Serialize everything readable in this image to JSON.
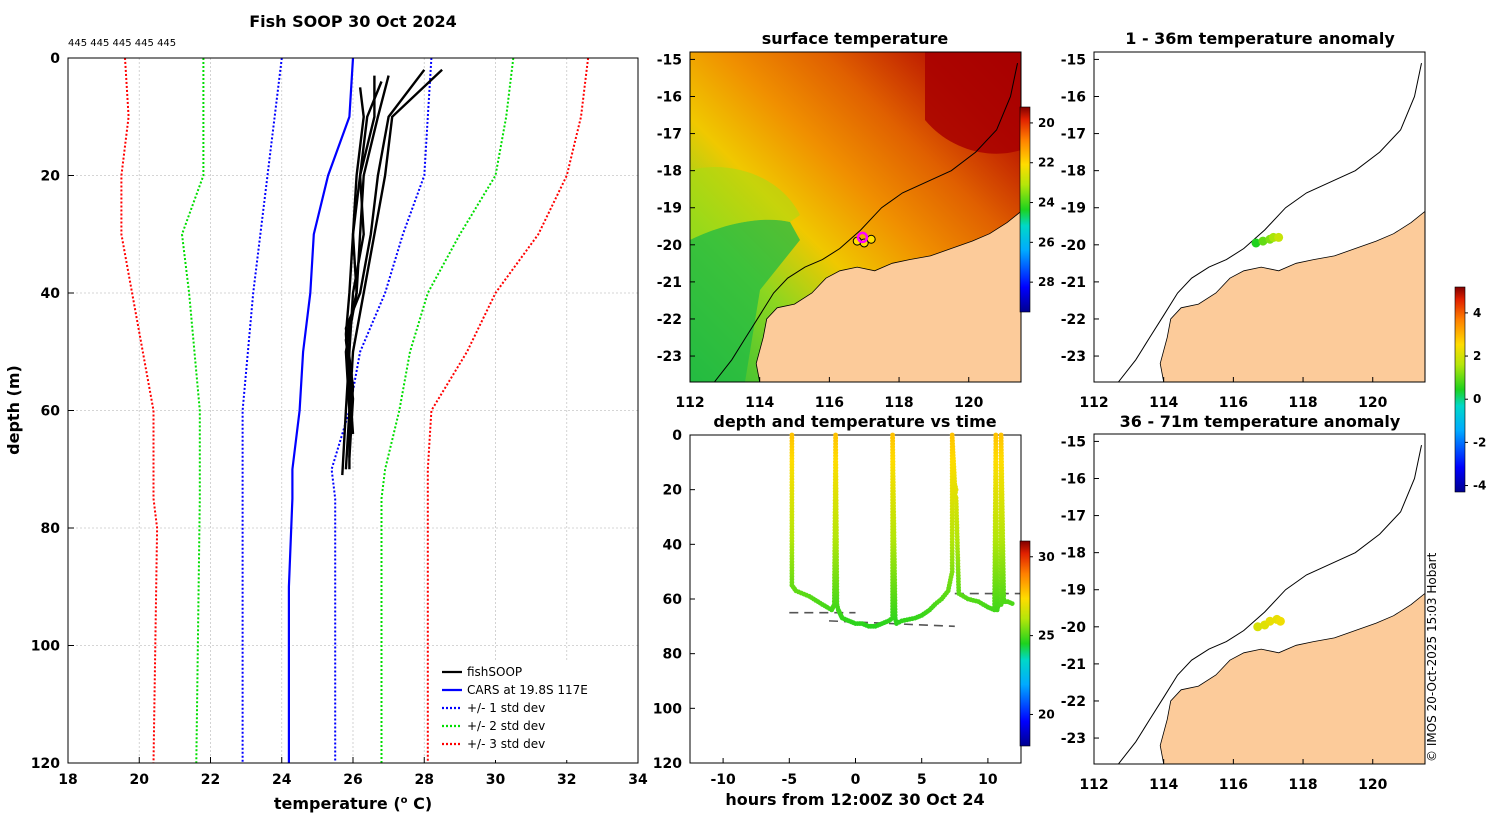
{
  "profile": {
    "title": "Fish SOOP 30 Oct 2024",
    "ids_label": "445 445 445 445 445",
    "xlabel": "temperature (",
    "xlabel_sup": "o",
    "xlabel_end": " C)",
    "ylabel": "depth (m)",
    "x_ticks": [
      "18",
      "20",
      "22",
      "24",
      "26",
      "28",
      "30",
      "32",
      "34"
    ],
    "y_ticks": [
      "0",
      "20",
      "40",
      "60",
      "80",
      "100",
      "120"
    ],
    "legend": [
      {
        "label": "fishSOOP",
        "color": "#000000",
        "style": "solid"
      },
      {
        "label": "CARS at 19.8S 117E",
        "color": "#0000ff",
        "style": "solid"
      },
      {
        "label": "+/- 1 std dev",
        "color": "#0000ff",
        "style": "dotted"
      },
      {
        "label": "+/- 2 std dev",
        "color": "#00dd00",
        "style": "dotted"
      },
      {
        "label": "+/- 3 std dev",
        "color": "#ff0000",
        "style": "dotted"
      }
    ]
  },
  "sst_map": {
    "title": "surface temperature",
    "x_ticks": [
      "112",
      "114",
      "116",
      "118",
      "120"
    ],
    "y_ticks": [
      "-15",
      "-16",
      "-17",
      "-18",
      "-19",
      "-20",
      "-21",
      "-22",
      "-23"
    ],
    "colorbar_ticks": [
      "28",
      "26",
      "24",
      "22",
      "20"
    ]
  },
  "anom_map_1": {
    "title": "1 - 36m temperature anomaly",
    "x_ticks": [
      "112",
      "114",
      "116",
      "118",
      "120"
    ],
    "y_ticks": [
      "-15",
      "-16",
      "-17",
      "-18",
      "-19",
      "-20",
      "-21",
      "-22",
      "-23"
    ]
  },
  "anom_map_2": {
    "title": "36 - 71m temperature anomaly",
    "x_ticks": [
      "112",
      "114",
      "116",
      "118",
      "120"
    ],
    "y_ticks": [
      "-15",
      "-16",
      "-17",
      "-18",
      "-19",
      "-20",
      "-21",
      "-22",
      "-23"
    ]
  },
  "anom_colorbar_ticks": [
    "4",
    "2",
    "0",
    "-2",
    "-4"
  ],
  "timeseries": {
    "title": "depth and temperature vs time",
    "xlabel": "hours from 12:00Z 30 Oct 24",
    "x_ticks": [
      "-10",
      "-5",
      "0",
      "5",
      "10"
    ],
    "y_ticks": [
      "0",
      "20",
      "40",
      "60",
      "80",
      "100",
      "120"
    ],
    "colorbar_ticks": [
      "30",
      "25",
      "20"
    ]
  },
  "credit": "© IMOS 20-Oct-2025 15:03 Hobart",
  "colors": {
    "land": "#fccb9a",
    "fish": "#000000",
    "cars": "#0000ff",
    "sd1": "#0000ff",
    "sd2": "#00dd00",
    "sd3": "#ff0000"
  },
  "chart_data": [
    {
      "type": "line",
      "title": "Fish SOOP 30 Oct 2024",
      "xlabel": "temperature (o C)",
      "ylabel": "depth (m)",
      "xlim": [
        18,
        34
      ],
      "ylim": [
        0,
        120
      ],
      "y_reversed": true,
      "series": [
        {
          "name": "CARS at 19.8S 117E",
          "depth": [
            0,
            10,
            20,
            30,
            40,
            50,
            60,
            70,
            75,
            90,
            120
          ],
          "temp": [
            26.0,
            25.9,
            25.3,
            24.9,
            24.8,
            24.6,
            24.5,
            24.3,
            24.3,
            24.2,
            24.2
          ]
        },
        {
          "name": "+/- 1 std dev (low)",
          "depth": [
            0,
            20,
            40,
            60,
            75,
            120
          ],
          "temp": [
            24.0,
            23.6,
            23.2,
            22.9,
            22.9,
            22.9
          ]
        },
        {
          "name": "+/- 1 std dev (high)",
          "depth": [
            0,
            10,
            20,
            30,
            40,
            50,
            60,
            70,
            75,
            90,
            120
          ],
          "temp": [
            28.2,
            28.1,
            28.0,
            27.4,
            26.9,
            26.2,
            25.9,
            25.4,
            25.5,
            25.5,
            25.5
          ]
        },
        {
          "name": "+/- 2 std dev (low)",
          "depth": [
            0,
            20,
            30,
            40,
            60,
            75,
            120
          ],
          "temp": [
            21.8,
            21.8,
            21.2,
            21.4,
            21.7,
            21.7,
            21.6
          ]
        },
        {
          "name": "+/- 2 std dev (high)",
          "depth": [
            0,
            10,
            20,
            30,
            40,
            50,
            60,
            70,
            75,
            120
          ],
          "temp": [
            30.5,
            30.3,
            30.0,
            29.0,
            28.1,
            27.6,
            27.3,
            26.9,
            26.8,
            26.8
          ]
        },
        {
          "name": "+/- 3 std dev (low)",
          "depth": [
            0,
            10,
            20,
            30,
            40,
            50,
            60,
            75,
            80,
            120
          ],
          "temp": [
            19.6,
            19.7,
            19.5,
            19.5,
            19.8,
            20.1,
            20.4,
            20.4,
            20.5,
            20.4
          ]
        },
        {
          "name": "+/- 3 std dev (high)",
          "depth": [
            0,
            10,
            20,
            30,
            40,
            50,
            60,
            70,
            75,
            120
          ],
          "temp": [
            32.6,
            32.4,
            32.0,
            31.2,
            30.0,
            29.2,
            28.2,
            28.1,
            28.1,
            28.1
          ]
        },
        {
          "name": "fishSOOP cast 1",
          "depth": [
            2,
            10,
            20,
            30,
            40,
            50,
            60,
            70
          ],
          "temp": [
            28.5,
            27.1,
            26.9,
            26.6,
            26.3,
            26.0,
            25.9,
            25.8
          ]
        },
        {
          "name": "fishSOOP cast 2",
          "depth": [
            2,
            10,
            20,
            30,
            40,
            46,
            56,
            65
          ],
          "temp": [
            28.0,
            27.0,
            26.7,
            26.5,
            26.2,
            25.8,
            26.0,
            25.9
          ]
        },
        {
          "name": "fishSOOP cast 3",
          "depth": [
            3,
            10,
            20,
            30,
            40,
            48,
            58,
            68
          ],
          "temp": [
            27.0,
            26.7,
            26.3,
            26.2,
            26.1,
            25.8,
            26.0,
            25.9
          ]
        },
        {
          "name": "fishSOOP cast 4",
          "depth": [
            3,
            10,
            20,
            30,
            40,
            50,
            60,
            71
          ],
          "temp": [
            26.6,
            26.6,
            26.2,
            26.3,
            26.0,
            25.9,
            25.8,
            25.7
          ]
        },
        {
          "name": "fishSOOP cast 5",
          "depth": [
            4,
            10,
            20,
            30,
            40,
            47,
            55,
            64
          ],
          "temp": [
            26.8,
            26.4,
            26.2,
            26.0,
            25.9,
            25.8,
            25.9,
            26.0
          ]
        },
        {
          "name": "fishSOOP cast 6",
          "depth": [
            5,
            10,
            20,
            30,
            40,
            50,
            60,
            70
          ],
          "temp": [
            26.2,
            26.3,
            26.1,
            26.0,
            26.1,
            25.8,
            25.9,
            25.9
          ]
        }
      ]
    },
    {
      "type": "scatter",
      "title": "depth and temperature vs time",
      "xlabel": "hours from 12:00Z 30 Oct 24",
      "ylabel": "depth (m)",
      "xlim": [
        -12.5,
        12.5
      ],
      "ylim": [
        0,
        120
      ],
      "y_reversed": true,
      "color_range": [
        18,
        31
      ],
      "track": {
        "time": [
          -4.8,
          -4.8,
          -4.5,
          -3.5,
          -2.5,
          -1.8,
          -1.6,
          -1.5,
          -1.4,
          -1.3,
          -1.2,
          -1.1,
          -1.0,
          -0.5,
          0,
          0.5,
          1.0,
          1.5,
          2.0,
          2.5,
          2.8,
          2.8,
          3.0,
          3.1,
          3.5,
          4.5,
          5.0,
          5.6,
          6.0,
          6.5,
          7.0,
          7.3,
          7.3,
          7.5,
          7.6,
          7.5,
          7.6,
          7.8,
          8.5,
          9.3,
          10.0,
          10.5,
          10.6,
          10.7,
          10.8,
          11.0,
          11.0,
          11.2,
          11.5,
          12.0
        ],
        "depth": [
          0,
          55,
          57,
          59,
          62,
          64,
          62,
          0,
          62,
          64,
          65,
          66,
          67,
          68,
          69,
          69,
          70,
          70,
          69,
          68,
          67,
          0,
          67,
          69,
          68,
          67,
          66,
          64,
          62,
          60,
          57,
          50,
          0,
          18,
          20,
          22,
          23,
          58,
          60,
          61,
          63,
          64,
          0,
          64,
          62,
          62,
          0,
          61,
          61,
          62
        ]
      },
      "bottom_dashes": [
        {
          "x": [
            -5,
            0
          ],
          "depth": [
            65,
            65
          ]
        },
        {
          "x": [
            -2,
            7.5
          ],
          "depth": [
            68,
            70
          ]
        },
        {
          "x": [
            7.5,
            12.5
          ],
          "depth": [
            58,
            58
          ]
        }
      ]
    },
    {
      "type": "scatter",
      "title": "surface temperature",
      "xlim": [
        112,
        121.5
      ],
      "ylim": [
        -23.7,
        -14.8
      ],
      "color_range": [
        19.5,
        29.5
      ],
      "cast_positions": [
        {
          "lon": 116.8,
          "lat": -19.9
        },
        {
          "lon": 117.0,
          "lat": -19.95
        },
        {
          "lon": 117.2,
          "lat": -19.85
        },
        {
          "lon": 116.95,
          "lat": -19.8
        }
      ]
    },
    {
      "type": "scatter",
      "title": "1 - 36m temperature anomaly",
      "xlim": [
        112,
        121.5
      ],
      "ylim": [
        -23.7,
        -14.8
      ],
      "color_range": [
        -4,
        5
      ],
      "points": [
        {
          "lon": 116.65,
          "lat": -19.95,
          "anom": 0.5
        },
        {
          "lon": 116.85,
          "lat": -19.9,
          "anom": 1.0
        },
        {
          "lon": 117.05,
          "lat": -19.85,
          "anom": 1.2
        },
        {
          "lon": 117.15,
          "lat": -19.8,
          "anom": 1.5
        },
        {
          "lon": 117.3,
          "lat": -19.8,
          "anom": 1.8
        }
      ]
    },
    {
      "type": "scatter",
      "title": "36 - 71m temperature anomaly",
      "xlim": [
        112,
        121.5
      ],
      "ylim": [
        -23.7,
        -14.8
      ],
      "color_range": [
        -4,
        5
      ],
      "points": [
        {
          "lon": 116.7,
          "lat": -20.0,
          "anom": 2.0
        },
        {
          "lon": 116.9,
          "lat": -19.95,
          "anom": 2.1
        },
        {
          "lon": 117.05,
          "lat": -19.85,
          "anom": 2.2
        },
        {
          "lon": 117.25,
          "lat": -19.8,
          "anom": 2.2
        },
        {
          "lon": 117.35,
          "lat": -19.85,
          "anom": 2.3
        }
      ]
    }
  ]
}
